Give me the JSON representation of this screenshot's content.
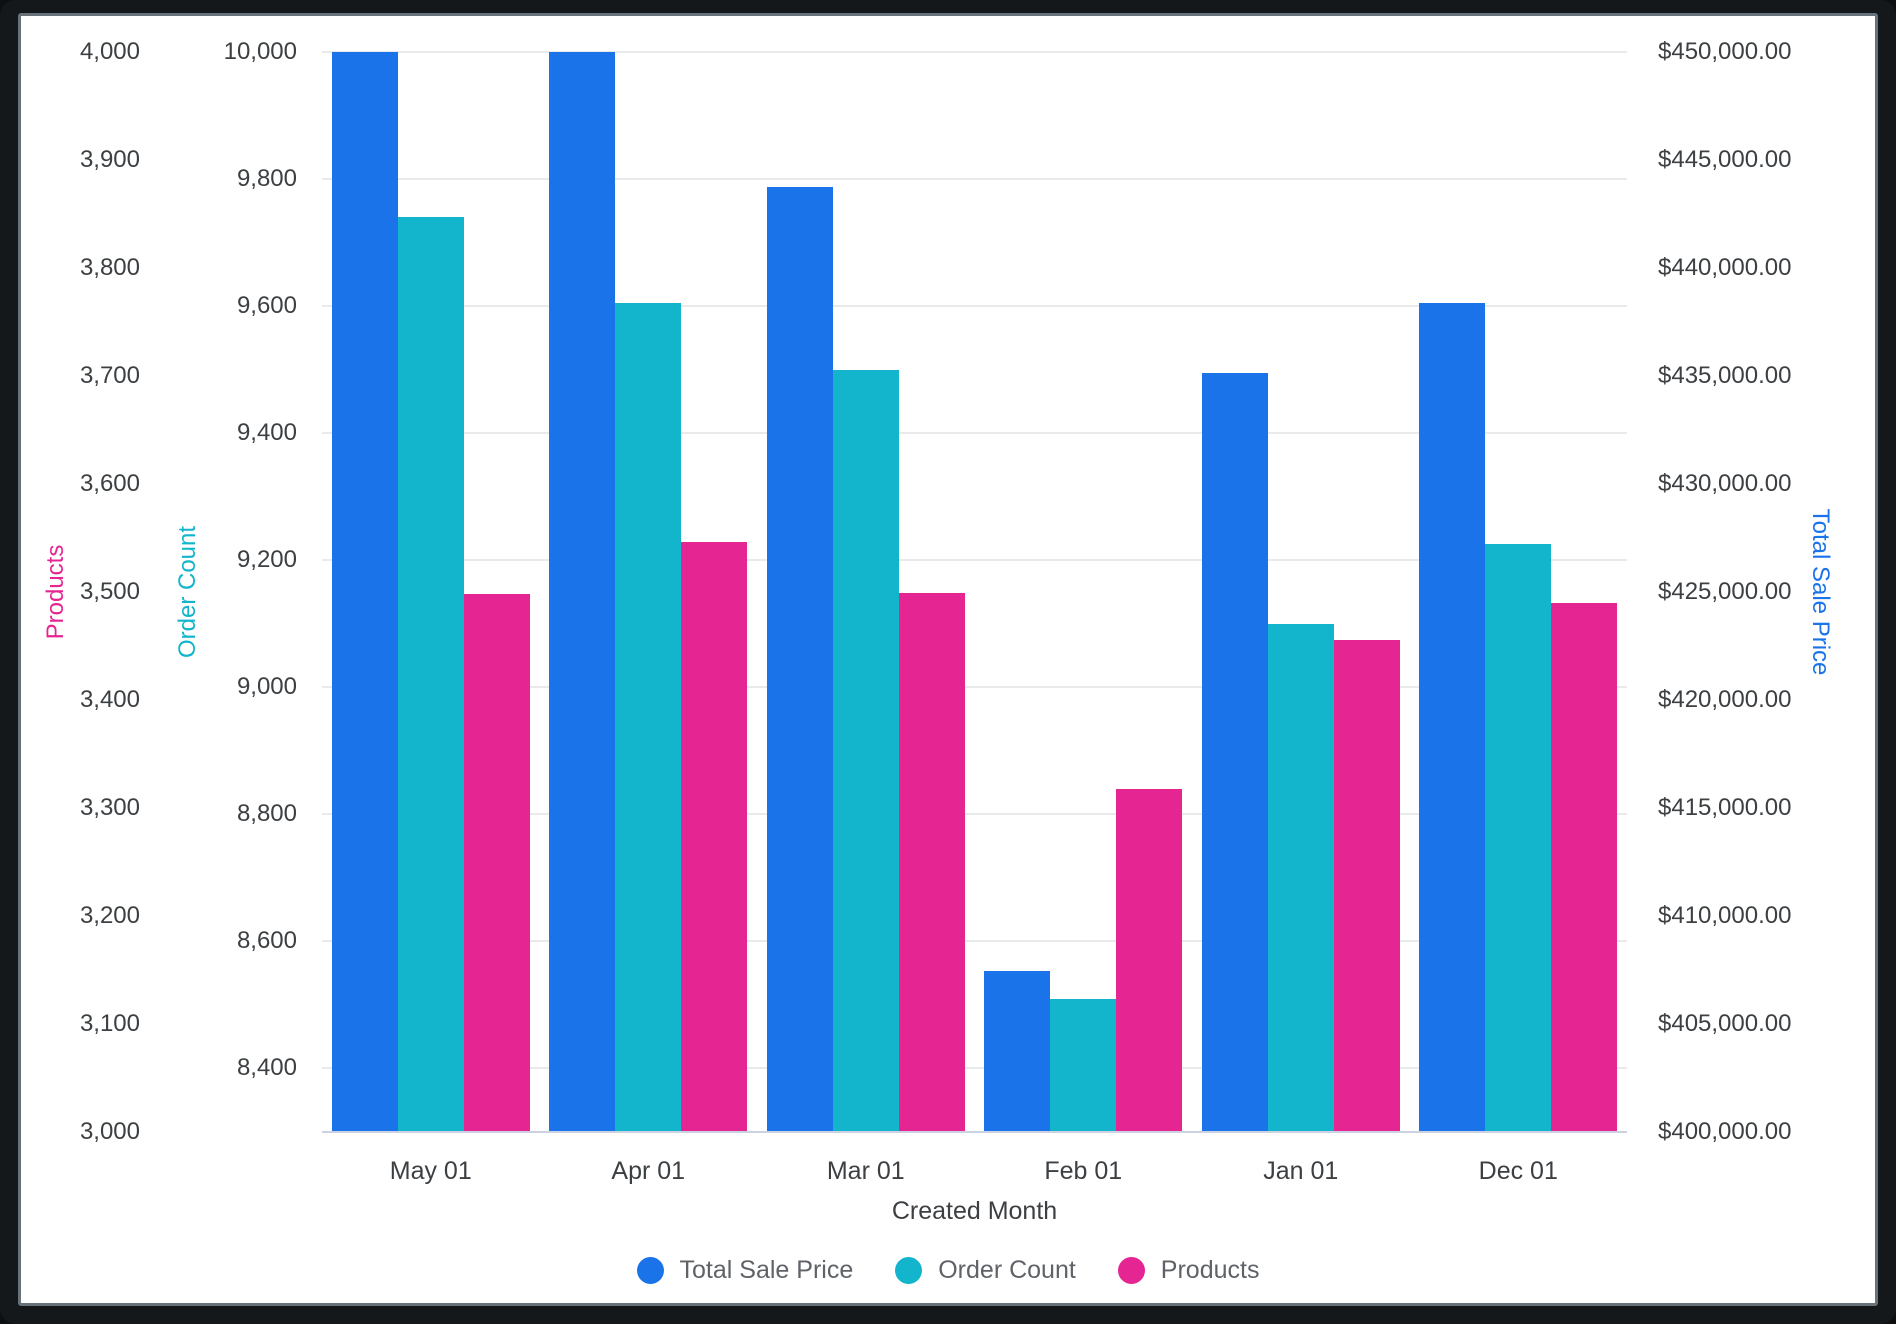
{
  "window": {
    "background": "#15181b",
    "card_background": "#ffffff",
    "card_border": "#68727a"
  },
  "chart_data": {
    "type": "bar",
    "title": "",
    "xlabel": "Created Month",
    "categories": [
      "May 01",
      "Apr 01",
      "Mar 01",
      "Feb 01",
      "Jan 01",
      "Dec 01"
    ],
    "series": [
      {
        "key": "total_sale_price",
        "name": "Total Sale Price",
        "axis": "price",
        "color": "#1a73e8",
        "values": [
          450000,
          450000,
          443750,
          407450,
          435140,
          438380
        ]
      },
      {
        "key": "order_count",
        "name": "Order Count",
        "axis": "order",
        "color": "#12b5cb",
        "values": [
          9740,
          9605,
          9500,
          8510,
          9100,
          9225
        ]
      },
      {
        "key": "products",
        "name": "Products",
        "axis": "products",
        "color": "#e52592",
        "values": [
          3498,
          3546,
          3499,
          3318,
          3456,
          3490
        ]
      }
    ],
    "axes": {
      "products": {
        "title": "Products",
        "side": "outer-left",
        "color": "#e52592",
        "min": 3000,
        "max": 4000,
        "ticks": [
          "4,000",
          "3,900",
          "3,800",
          "3,700",
          "3,600",
          "3,500",
          "3,400",
          "3,300",
          "3,200",
          "3,100",
          "3,000"
        ]
      },
      "order": {
        "title": "Order Count",
        "side": "inner-left",
        "color": "#12b5cb",
        "min": 8300,
        "max": 10000,
        "ticks": [
          "10,000",
          "9,800",
          "9,600",
          "9,400",
          "9,200",
          "9,000",
          "8,800",
          "8,600",
          "8,400"
        ]
      },
      "price": {
        "title": "Total Sale Price",
        "side": "right",
        "color": "#1a73e8",
        "min": 400000,
        "max": 450000,
        "ticks": [
          "$450,000.00",
          "$445,000.00",
          "$440,000.00",
          "$435,000.00",
          "$430,000.00",
          "$425,000.00",
          "$420,000.00",
          "$415,000.00",
          "$410,000.00",
          "$405,000.00",
          "$400,000.00"
        ]
      }
    },
    "grid": {
      "horizontal": true,
      "follows_axis": "order",
      "color": "#e8eaec",
      "baseline_color": "#ccd2e2"
    },
    "legend": {
      "position": "bottom-center",
      "items": [
        {
          "label": "Total Sale Price",
          "color": "#1a73e8"
        },
        {
          "label": "Order Count",
          "color": "#12b5cb"
        },
        {
          "label": "Products",
          "color": "#e52592"
        }
      ]
    },
    "text_colors": {
      "tick": "#3c4043",
      "legend": "#5f6368"
    }
  }
}
